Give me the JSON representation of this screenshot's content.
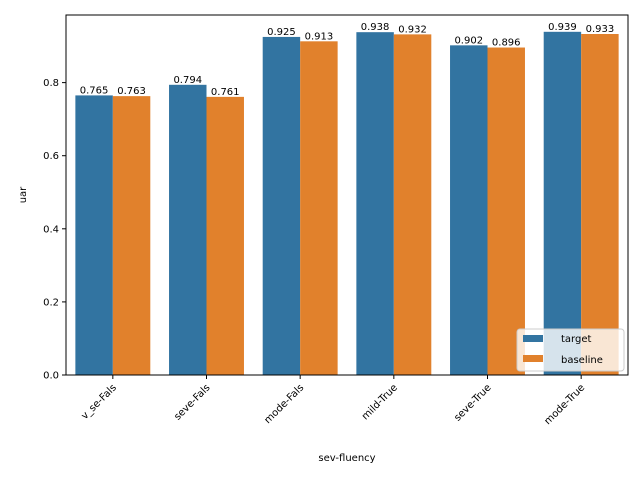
{
  "chart_data": {
    "type": "bar",
    "categories": [
      "v_se-Fals",
      "seve-Fals",
      "mode-Fals",
      "mild-True",
      "seve-True",
      "mode-True"
    ],
    "series": [
      {
        "name": "target",
        "values": [
          0.765,
          0.794,
          0.925,
          0.938,
          0.902,
          0.939
        ],
        "color": "#3274a1"
      },
      {
        "name": "baseline",
        "values": [
          0.763,
          0.761,
          0.913,
          0.932,
          0.896,
          0.933
        ],
        "color": "#e1812c"
      }
    ],
    "data_labels": [
      [
        "0.765",
        "0.794",
        "0.925",
        "0.938",
        "0.902",
        "0.939"
      ],
      [
        "0.763",
        "0.761",
        "0.913",
        "0.932",
        "0.896",
        "0.933"
      ]
    ],
    "xlabel": "sev-fluency",
    "ylabel": "uar",
    "ylim": [
      0,
      0.985
    ],
    "yticks": [
      0.0,
      0.2,
      0.4,
      0.6,
      0.8
    ],
    "ytick_labels": [
      "0.0",
      "0.2",
      "0.4",
      "0.6",
      "0.8"
    ],
    "xtick_rotation": 45,
    "grid": false,
    "legend_position": "bottom-right"
  }
}
